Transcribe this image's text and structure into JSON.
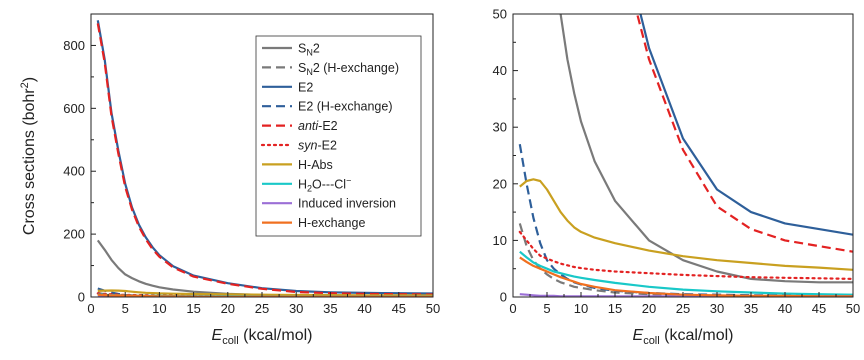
{
  "figure": {
    "ylabel": {
      "base": "Cross sections (bohr",
      "sup": "2",
      "tail": ")"
    },
    "xlabel": {
      "italic": "E",
      "sub": "coll",
      "rest": " (kcal/mol)"
    }
  },
  "legend": [
    {
      "key": "sn2",
      "parts": [
        [
          "S",
          ""
        ],
        [
          "N",
          "sub"
        ],
        [
          "2",
          ""
        ]
      ]
    },
    {
      "key": "sn2_hex",
      "parts": [
        [
          "S",
          ""
        ],
        [
          "N",
          "sub"
        ],
        [
          "2 (H-exchange)",
          ""
        ]
      ]
    },
    {
      "key": "e2",
      "parts": [
        [
          "E2",
          ""
        ]
      ]
    },
    {
      "key": "e2_hex",
      "parts": [
        [
          "E2 (H-exchange)",
          ""
        ]
      ]
    },
    {
      "key": "anti",
      "parts": [
        [
          "anti",
          "italic"
        ],
        [
          "-E2",
          ""
        ]
      ]
    },
    {
      "key": "syn",
      "parts": [
        [
          "syn",
          "italic"
        ],
        [
          "-E2",
          ""
        ]
      ]
    },
    {
      "key": "habs",
      "parts": [
        [
          "H-Abs",
          ""
        ]
      ]
    },
    {
      "key": "h2o",
      "parts": [
        [
          "H",
          ""
        ],
        [
          "2",
          "sub"
        ],
        [
          "O---Cl",
          ""
        ],
        [
          "−",
          "sup"
        ]
      ]
    },
    {
      "key": "inv",
      "parts": [
        [
          "Induced inversion",
          ""
        ]
      ]
    },
    {
      "key": "hex",
      "parts": [
        [
          "H-exchange",
          ""
        ]
      ]
    }
  ],
  "chart_data": [
    {
      "type": "line",
      "panel": "left",
      "xlabel": "E_coll (kcal/mol)",
      "ylabel": "Cross sections (bohr^2)",
      "xlim": [
        0,
        50
      ],
      "ylim": [
        0,
        900
      ],
      "xticks": [
        0,
        5,
        10,
        15,
        20,
        25,
        30,
        35,
        40,
        45,
        50
      ],
      "yticks": [
        0,
        200,
        400,
        600,
        800
      ],
      "legend_position": "top-right",
      "x": [
        1,
        2,
        3,
        4,
        5,
        6,
        7,
        8,
        9,
        10,
        12,
        15,
        20,
        25,
        30,
        35,
        40,
        45,
        50
      ],
      "series": [
        {
          "key": "sn2",
          "values": [
            180,
            150,
            118,
            92,
            72,
            60,
            50,
            42,
            36,
            31,
            24,
            17,
            10,
            6.5,
            4.5,
            3.2,
            2.8,
            2.6,
            2.6
          ]
        },
        {
          "key": "sn2_hex",
          "values": [
            13,
            9,
            6.5,
            5,
            4,
            3.2,
            2.6,
            2.2,
            1.8,
            1.6,
            1.2,
            0.8,
            0.5,
            0.3,
            0.2,
            0.15,
            0.1,
            0.1,
            0.1
          ]
        },
        {
          "key": "e2",
          "values": [
            880,
            755,
            585,
            465,
            360,
            285,
            230,
            190,
            158,
            133,
            98,
            68,
            44,
            28,
            19,
            15,
            13,
            12,
            11
          ]
        },
        {
          "key": "e2_hex",
          "values": [
            27,
            20,
            14,
            9.5,
            6.5,
            5,
            4,
            3.2,
            2.6,
            2.2,
            1.6,
            1.1,
            0.7,
            0.5,
            0.4,
            0.3,
            0.3,
            0.3,
            0.3
          ]
        },
        {
          "key": "anti",
          "values": [
            870,
            745,
            575,
            455,
            350,
            278,
            224,
            184,
            152,
            128,
            94,
            65,
            42,
            26,
            16,
            12,
            10,
            9,
            8
          ]
        },
        {
          "key": "syn",
          "values": [
            11.5,
            10,
            8.5,
            7.3,
            6.8,
            6.3,
            5.9,
            5.6,
            5.3,
            5.1,
            4.8,
            4.5,
            4.2,
            3.9,
            3.7,
            3.5,
            3.4,
            3.3,
            3.2
          ]
        },
        {
          "key": "habs",
          "values": [
            19.5,
            20.5,
            20.8,
            20.5,
            19,
            17,
            15,
            13.5,
            12.3,
            11.5,
            10.5,
            9.5,
            8.2,
            7.2,
            6.5,
            6,
            5.5,
            5.2,
            4.8
          ]
        },
        {
          "key": "h2o",
          "values": [
            8,
            7,
            6.1,
            5.5,
            5,
            4.5,
            4.2,
            3.9,
            3.6,
            3.4,
            3,
            2.5,
            1.8,
            1.3,
            1,
            0.8,
            0.6,
            0.5,
            0.4
          ]
        },
        {
          "key": "inv",
          "values": [
            0.5,
            0.4,
            0.3,
            0.2,
            0.2,
            0.2,
            0.1,
            0.1,
            0.1,
            0.1,
            0.1,
            0.1,
            0.1,
            0.1,
            0.1,
            0.1,
            0.1,
            0.1,
            0.1
          ]
        },
        {
          "key": "hex",
          "values": [
            7,
            6.2,
            5.5,
            5,
            4.5,
            4,
            3.5,
            3.1,
            2.7,
            2.3,
            1.8,
            1.2,
            0.7,
            0.4,
            0.3,
            0.2,
            0.2,
            0.1,
            0.1
          ]
        }
      ]
    },
    {
      "type": "line",
      "panel": "right",
      "xlabel": "E_coll (kcal/mol)",
      "xlim": [
        0,
        50
      ],
      "ylim": [
        0,
        50
      ],
      "xticks": [
        0,
        5,
        10,
        15,
        20,
        25,
        30,
        35,
        40,
        45,
        50
      ],
      "yticks": [
        0,
        10,
        20,
        30,
        40,
        50
      ],
      "note": "zoom of the same series as left panel"
    }
  ],
  "styles": {
    "sn2": {
      "color": "#7a7a7a",
      "dash": ""
    },
    "sn2_hex": {
      "color": "#7a7a7a",
      "dash": "9,5"
    },
    "e2": {
      "color": "#2e5f9a",
      "dash": ""
    },
    "e2_hex": {
      "color": "#2e5f9a",
      "dash": "9,5"
    },
    "anti": {
      "color": "#e32222",
      "dash": "9,5"
    },
    "syn": {
      "color": "#e32222",
      "dash": "2,4"
    },
    "habs": {
      "color": "#c9a020",
      "dash": ""
    },
    "h2o": {
      "color": "#19c8c8",
      "dash": ""
    },
    "inv": {
      "color": "#9b6fd6",
      "dash": ""
    },
    "hex": {
      "color": "#f07020",
      "dash": ""
    }
  }
}
